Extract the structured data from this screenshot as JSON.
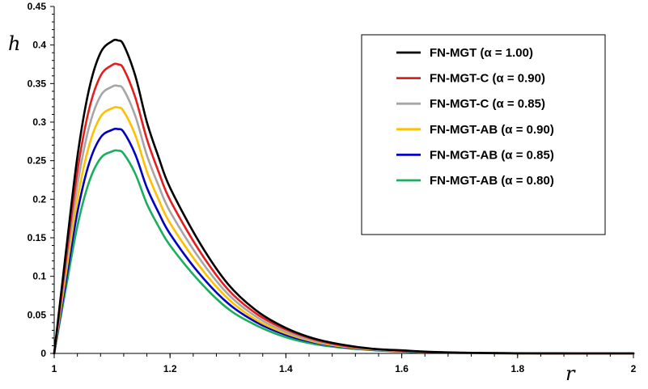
{
  "chart_data": {
    "type": "line",
    "title": "",
    "xlabel": "r",
    "ylabel": "h",
    "xlim": [
      1,
      2
    ],
    "ylim": [
      0,
      0.45
    ],
    "x_ticks": [
      "1",
      "1.2",
      "1.4",
      "1.6",
      "1.8",
      "2"
    ],
    "y_ticks": [
      "0",
      "0.05",
      "0.1",
      "0.15",
      "0.2",
      "0.25",
      "0.3",
      "0.35",
      "0.4",
      "0.45"
    ],
    "legend_position": "top-right",
    "x": [
      1.0,
      1.02,
      1.04,
      1.06,
      1.08,
      1.1,
      1.11,
      1.12,
      1.14,
      1.16,
      1.18,
      1.2,
      1.25,
      1.3,
      1.35,
      1.4,
      1.45,
      1.5,
      1.55,
      1.6,
      1.65,
      1.7,
      1.75,
      1.8,
      1.85,
      1.9,
      1.95,
      2.0
    ],
    "series": [
      {
        "name": "FN-MGT (α = 1.00)",
        "color": "#000000",
        "values": [
          0.0,
          0.13,
          0.255,
          0.342,
          0.39,
          0.405,
          0.406,
          0.4,
          0.36,
          0.3,
          0.255,
          0.215,
          0.145,
          0.09,
          0.055,
          0.033,
          0.019,
          0.011,
          0.006,
          0.004,
          0.002,
          0.001,
          0.0005,
          0.0002,
          0.0001,
          0.0,
          0.0,
          0.0
        ]
      },
      {
        "name": "FN-MGT-C (α = 0.90)",
        "color": "#e41e1e",
        "values": [
          0.0,
          0.12,
          0.236,
          0.316,
          0.36,
          0.374,
          0.375,
          0.369,
          0.332,
          0.278,
          0.236,
          0.199,
          0.134,
          0.083,
          0.051,
          0.031,
          0.018,
          0.01,
          0.006,
          0.0035,
          0.0018,
          0.0009,
          0.0004,
          0.0002,
          0.0001,
          0.0,
          0.0,
          0.0
        ]
      },
      {
        "name": "FN-MGT-C (α = 0.85)",
        "color": "#a6a6a6",
        "values": [
          0.0,
          0.111,
          0.218,
          0.293,
          0.334,
          0.346,
          0.347,
          0.342,
          0.308,
          0.257,
          0.218,
          0.184,
          0.124,
          0.077,
          0.047,
          0.028,
          0.016,
          0.0095,
          0.0055,
          0.0032,
          0.0016,
          0.0008,
          0.0004,
          0.0002,
          0.0001,
          0.0,
          0.0,
          0.0
        ]
      },
      {
        "name": "FN-MGT-AB (α = 0.90)",
        "color": "#ffc000",
        "values": [
          0.0,
          0.102,
          0.2,
          0.269,
          0.307,
          0.318,
          0.319,
          0.314,
          0.283,
          0.236,
          0.2,
          0.169,
          0.114,
          0.071,
          0.043,
          0.026,
          0.015,
          0.0087,
          0.005,
          0.003,
          0.0015,
          0.0007,
          0.0003,
          0.0001,
          0.0,
          0.0,
          0.0,
          0.0
        ]
      },
      {
        "name": "FN-MGT-AB (α = 0.85)",
        "color": "#0000c0",
        "values": [
          0.0,
          0.093,
          0.183,
          0.246,
          0.28,
          0.29,
          0.291,
          0.287,
          0.258,
          0.215,
          0.183,
          0.155,
          0.104,
          0.065,
          0.04,
          0.024,
          0.014,
          0.008,
          0.0046,
          0.0027,
          0.0014,
          0.0007,
          0.0003,
          0.0001,
          0.0,
          0.0,
          0.0,
          0.0
        ]
      },
      {
        "name": "FN-MGT-AB (α = 0.80)",
        "color": "#1aaf5d",
        "values": [
          0.0,
          0.084,
          0.165,
          0.222,
          0.253,
          0.262,
          0.263,
          0.259,
          0.233,
          0.194,
          0.165,
          0.14,
          0.094,
          0.058,
          0.036,
          0.021,
          0.012,
          0.0072,
          0.0042,
          0.0024,
          0.0012,
          0.0006,
          0.0003,
          0.0001,
          0.0,
          0.0,
          0.0,
          0.0
        ]
      }
    ]
  }
}
